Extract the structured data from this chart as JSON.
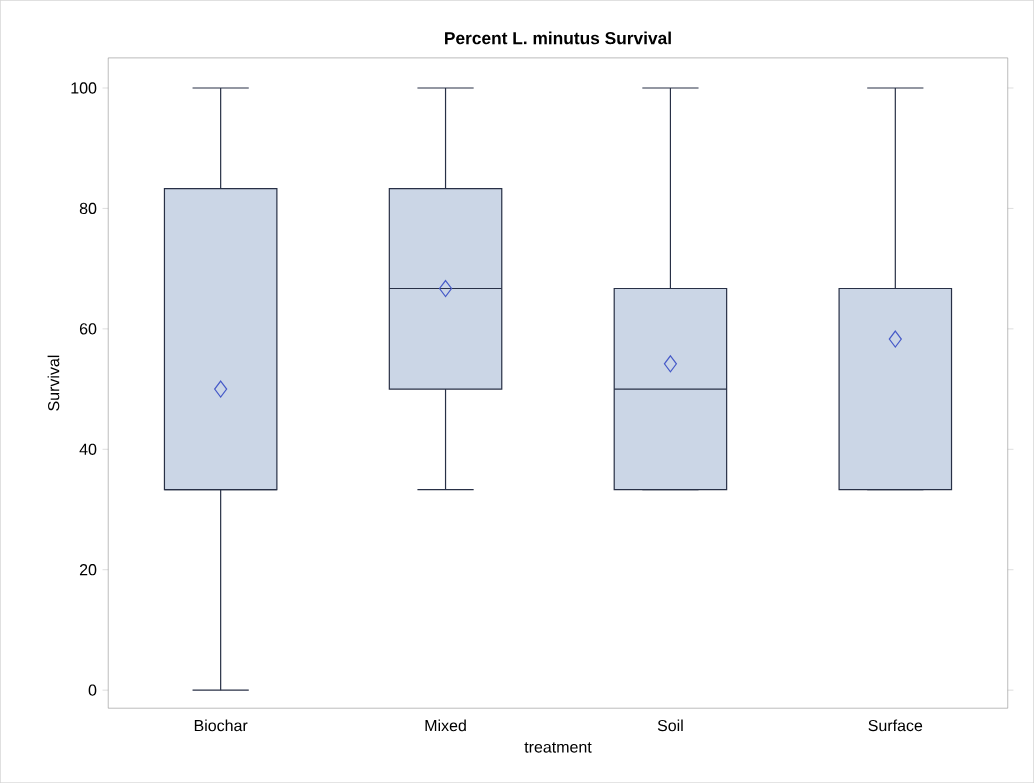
{
  "chart_data": {
    "type": "box",
    "title": "Percent L. minutus Survival",
    "xlabel": "treatment",
    "ylabel": "Survival",
    "categories": [
      "Biochar",
      "Mixed",
      "Soil",
      "Surface"
    ],
    "color": "#cbd6e6",
    "marker": "diamond",
    "boxes": [
      {
        "low": 0,
        "q1": 33.3,
        "median": 33.3,
        "q3": 83.3,
        "high": 100,
        "mean": 50
      },
      {
        "low": 33.3,
        "q1": 50,
        "median": 66.7,
        "q3": 83.3,
        "high": 100,
        "mean": 66.7
      },
      {
        "low": 33.3,
        "q1": 33.3,
        "median": 50,
        "q3": 66.7,
        "high": 100,
        "mean": 54.2
      },
      {
        "low": 33.3,
        "q1": 33.3,
        "median": 66.7,
        "q3": 66.7,
        "high": 100,
        "mean": 58.3
      }
    ],
    "ylim": [
      -3,
      105
    ],
    "yticks": [
      0,
      20,
      40,
      60,
      80,
      100
    ]
  }
}
